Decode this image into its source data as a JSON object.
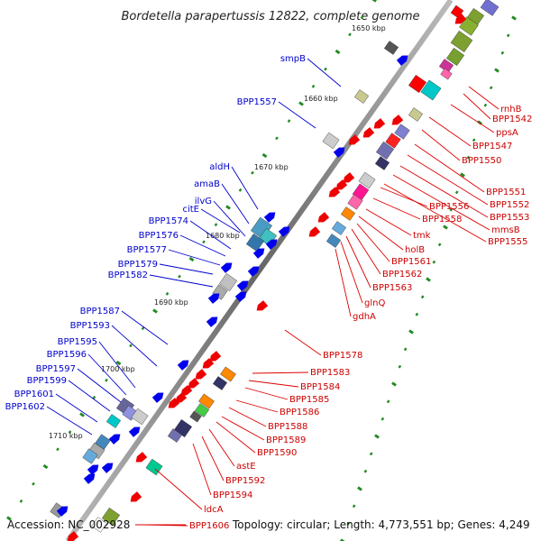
{
  "title": "Bordetella parapertussis 12822, complete genome",
  "ruler": [
    "1650 kbp",
    "1660 kbp",
    "1670 kbp",
    "1680 kbp",
    "1690 kbp",
    "1700 kbp",
    "1710 kbp"
  ],
  "left_labels": [
    "smpB",
    "BPP1557",
    "aldH",
    "amaB",
    "ilvG",
    "citE",
    "BPP1574",
    "BPP1576",
    "BPP1577",
    "BPP1579",
    "BPP1582",
    "BPP1587",
    "BPP1593",
    "BPP1595",
    "BPP1596",
    "BPP1597",
    "BPP1599",
    "BPP1601",
    "BPP1602"
  ],
  "right_labels": [
    "rnhB",
    "BPP1542",
    "ppsA",
    "BPP1547",
    "BPP1550",
    "BPP1551",
    "BPP1552",
    "BPP1553",
    "mmsB",
    "BPP1555",
    "BPP1556",
    "BPP1558",
    "tmk",
    "holB",
    "BPP1561",
    "BPP1562",
    "BPP1563",
    "glnQ",
    "gdhA",
    "BPP1578",
    "BPP1583",
    "BPP1584",
    "BPP1585",
    "BPP1586",
    "BPP1588",
    "BPP1589",
    "BPP1590",
    "astE",
    "BPP1592",
    "BPP1594",
    "ldcA",
    "BPP1606"
  ],
  "footer": {
    "accession": "Accession: NC_002928",
    "summary": "Topology: circular; Length: 4,773,551 bp; Genes: 4,249"
  },
  "colors": {
    "forward": "#0000ee",
    "reverse": "#ee0000",
    "backbone": "#888888",
    "tick": "#228b22"
  }
}
